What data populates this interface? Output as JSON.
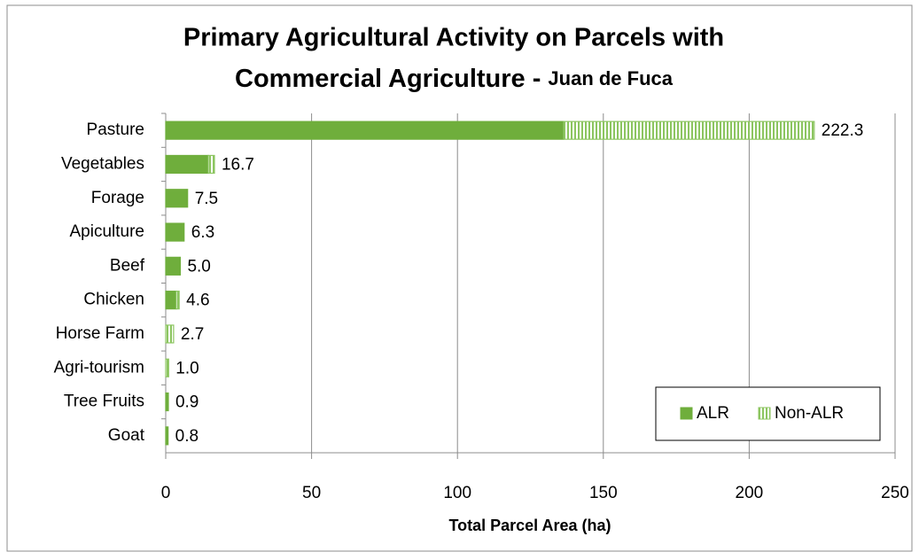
{
  "chart_data": {
    "type": "stacked-hbar",
    "title": [
      "Primary Agricultural Activity on Parcels with",
      "Commercial Agriculture -"
    ],
    "subtitle": "Juan de Fuca",
    "x_label": "Total Parcel Area (ha)",
    "categories": [
      "Pasture",
      "Vegetables",
      "Forage",
      "Apiculture",
      "Beef",
      "Chicken",
      "Horse Farm",
      "Agri-tourism",
      "Tree Fruits",
      "Goat"
    ],
    "series": [
      {
        "name": "ALR",
        "color": "#6fae3c",
        "pattern": "solid",
        "values": [
          136.4,
          14.6,
          7.5,
          6.3,
          5.0,
          3.6,
          0,
          0,
          0.9,
          0.8
        ]
      },
      {
        "name": "Non-ALR",
        "color": "#8cc560",
        "pattern": "vertical-stripes",
        "values": [
          85.9,
          2.1,
          0,
          0,
          0,
          1.0,
          2.7,
          1.0,
          0,
          0
        ]
      }
    ],
    "totals": [
      222.3,
      16.7,
      7.5,
      6.3,
      5.0,
      4.6,
      2.7,
      1.0,
      0.9,
      0.8
    ],
    "total_labels": [
      "222.3",
      "16.7",
      "7.5",
      "6.3",
      "5.0",
      "4.6",
      "2.7",
      "1.0",
      "0.9",
      "0.8"
    ],
    "xlim": [
      0,
      250
    ],
    "xticks": [
      0,
      50,
      100,
      150,
      200,
      250
    ],
    "grid": true,
    "legend": "lower-right"
  }
}
